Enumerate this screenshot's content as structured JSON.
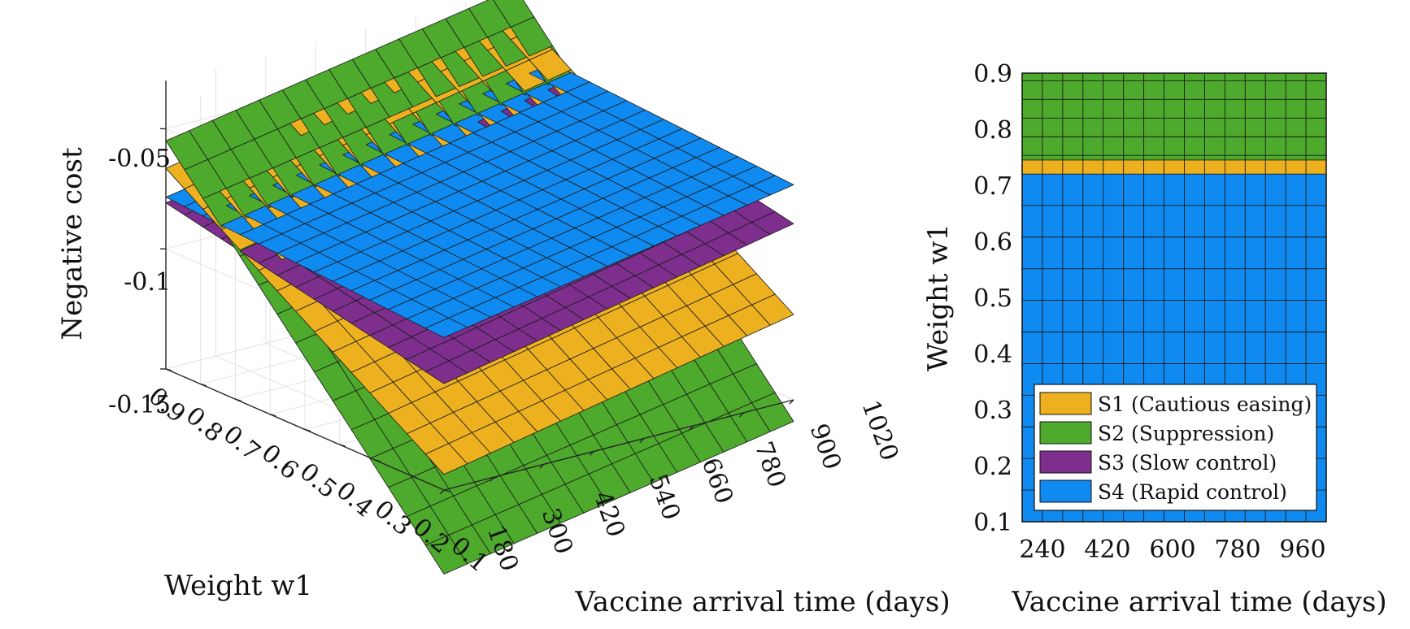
{
  "chart_data": [
    {
      "type": "surface",
      "xlabel": "Vaccine arrival time (days)",
      "ylabel": "Weight w1",
      "zlabel": "Negative cost",
      "x_ticks": [
        "180",
        "300",
        "420",
        "540",
        "660",
        "780",
        "900",
        "1020"
      ],
      "y_ticks": [
        "0.1",
        "0.2",
        "0.3",
        "0.4",
        "0.5",
        "0.6",
        "0.7",
        "0.8",
        "0.9"
      ],
      "z_ticks": [
        "-0.05",
        "-0.1",
        "-0.15"
      ],
      "xlim": [
        180,
        1020
      ],
      "ylim": [
        0.1,
        0.9
      ],
      "zlim": [
        -0.15,
        -0.03
      ],
      "grid": true,
      "series": [
        {
          "name": "S1 (Cautious easing)",
          "color": "#EDB120",
          "corners": {
            "x180_w0.1": -0.1435,
            "x1020_w0.1": -0.1145,
            "x180_w0.9": -0.0665,
            "x1020_w0.9": -0.0375
          }
        },
        {
          "name": "S2 (Suppression)",
          "color": "#4DAA2C",
          "corners": {
            "x180_w0.1": -0.185,
            "x1020_w0.1": -0.159,
            "x180_w0.9": -0.055,
            "x1020_w0.9": -0.029
          }
        },
        {
          "name": "S3 (Slow control)",
          "color": "#7E2F8E",
          "corners": {
            "x180_w0.1": -0.1057,
            "x1020_w0.1": -0.0767,
            "x180_w0.9": -0.0809,
            "x1020_w0.9": -0.0519
          }
        },
        {
          "name": "S4 (Rapid control)",
          "color": "#0F8AF0",
          "corners": {
            "x180_w0.1": -0.0865,
            "x1020_w0.1": -0.0605,
            "x180_w0.9": -0.0785,
            "x1020_w0.9": -0.0525
          }
        }
      ]
    },
    {
      "type": "heatmap",
      "xlabel": "Vaccine arrival time (days)",
      "ylabel": "Weight w1",
      "x_ticks": [
        "240",
        "420",
        "600",
        "780",
        "960"
      ],
      "y_ticks": [
        "0.9",
        "0.8",
        "0.7",
        "0.6",
        "0.5",
        "0.4",
        "0.3",
        "0.2",
        "0.1"
      ],
      "xlim": [
        180,
        1020
      ],
      "ylim": [
        0.1,
        0.9
      ],
      "columns": 15,
      "bands": [
        {
          "strategy": "S4 (Rapid control)",
          "w1_from": 0.1,
          "w1_to": 0.72
        },
        {
          "strategy": "S1 (Cautious easing)",
          "w1_from": 0.72,
          "w1_to": 0.745
        },
        {
          "strategy": "S2 (Suppression)",
          "w1_from": 0.745,
          "w1_to": 0.9
        }
      ],
      "legend": {
        "position": "bottom-left",
        "entries": [
          {
            "label": "S1 (Cautious easing)",
            "color": "#EDB120"
          },
          {
            "label": "S2 (Suppression)",
            "color": "#4DAA2C"
          },
          {
            "label": "S3 (Slow control)",
            "color": "#7E2F8E"
          },
          {
            "label": "S4 (Rapid control)",
            "color": "#0F8AF0"
          }
        ]
      }
    }
  ]
}
